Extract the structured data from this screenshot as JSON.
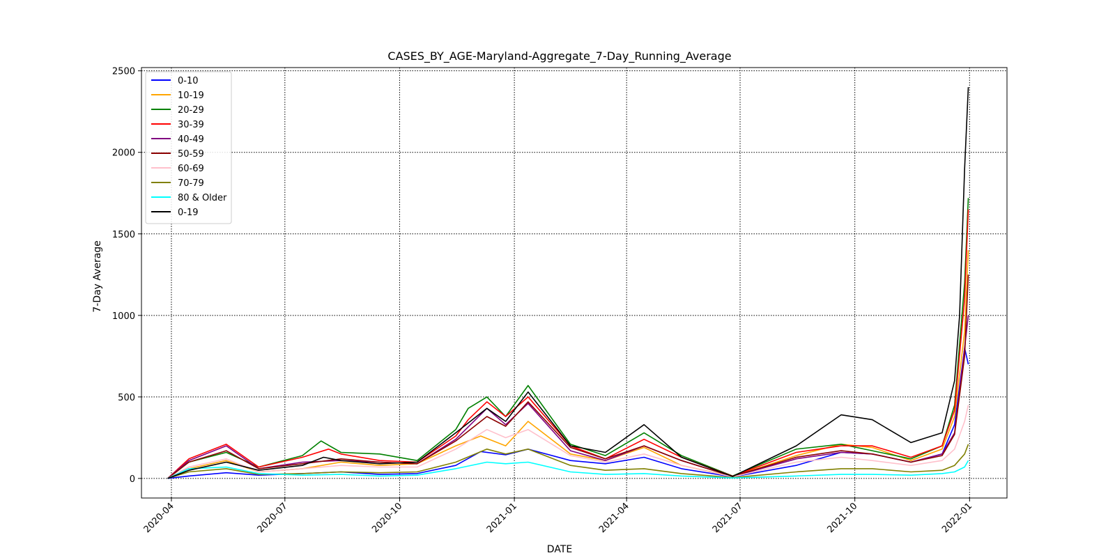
{
  "chart_data": {
    "type": "line",
    "title": "CASES_BY_AGE-Maryland-Aggregate_7-Day_Running_Average",
    "xlabel": "DATE",
    "ylabel": "7-Day Average",
    "xlim": [
      "2020-03-08",
      "2022-01-31"
    ],
    "ylim": [
      -120,
      2520
    ],
    "grid": true,
    "legend_position": "upper-left",
    "x_ticks": [
      "2020-04",
      "2020-07",
      "2020-10",
      "2021-01",
      "2021-04",
      "2021-07",
      "2021-10",
      "2022-01"
    ],
    "y_ticks": [
      0,
      500,
      1000,
      1500,
      2000,
      2500
    ],
    "series": [
      {
        "name": "0-10",
        "color": "#0000ff",
        "x": [
          "2020-03-29",
          "2020-04-15",
          "2020-05-15",
          "2020-06-10",
          "2020-07-15",
          "2020-08-15",
          "2020-09-15",
          "2020-10-15",
          "2020-11-15",
          "2020-12-05",
          "2020-12-25",
          "2021-01-12",
          "2021-02-15",
          "2021-03-15",
          "2021-04-15",
          "2021-05-15",
          "2021-06-25",
          "2021-08-15",
          "2021-09-20",
          "2021-10-15",
          "2021-11-15",
          "2021-12-10",
          "2021-12-20",
          "2021-12-28",
          "2021-12-31"
        ],
        "y": [
          0,
          15,
          35,
          20,
          30,
          40,
          25,
          30,
          80,
          165,
          145,
          180,
          110,
          90,
          130,
          60,
          10,
          80,
          160,
          150,
          100,
          150,
          330,
          800,
          700
        ]
      },
      {
        "name": "10-19",
        "color": "#ffa500",
        "x": [
          "2020-03-29",
          "2020-04-15",
          "2020-05-15",
          "2020-06-10",
          "2020-07-15",
          "2020-08-15",
          "2020-09-15",
          "2020-10-15",
          "2020-11-15",
          "2020-12-05",
          "2020-12-25",
          "2021-01-12",
          "2021-02-15",
          "2021-03-15",
          "2021-04-15",
          "2021-05-15",
          "2021-06-25",
          "2021-08-15",
          "2021-09-20",
          "2021-10-15",
          "2021-11-15",
          "2021-12-10",
          "2021-12-20",
          "2021-12-28",
          "2021-12-31"
        ],
        "y": [
          0,
          60,
          110,
          40,
          60,
          100,
          80,
          90,
          200,
          260,
          200,
          350,
          150,
          110,
          190,
          80,
          12,
          140,
          210,
          190,
          110,
          180,
          380,
          900,
          1400
        ]
      },
      {
        "name": "20-29",
        "color": "#008000",
        "x": [
          "2020-03-29",
          "2020-04-15",
          "2020-05-15",
          "2020-06-10",
          "2020-07-15",
          "2020-07-30",
          "2020-08-15",
          "2020-09-15",
          "2020-10-15",
          "2020-11-15",
          "2020-11-25",
          "2020-12-10",
          "2020-12-25",
          "2021-01-12",
          "2021-02-15",
          "2021-03-15",
          "2021-04-15",
          "2021-05-15",
          "2021-06-25",
          "2021-08-15",
          "2021-09-20",
          "2021-10-15",
          "2021-11-15",
          "2021-12-10",
          "2021-12-20",
          "2021-12-28",
          "2021-12-31"
        ],
        "y": [
          0,
          100,
          160,
          70,
          140,
          230,
          160,
          150,
          110,
          300,
          430,
          500,
          380,
          570,
          210,
          140,
          280,
          140,
          15,
          180,
          210,
          170,
          120,
          200,
          450,
          1200,
          1720
        ]
      },
      {
        "name": "30-39",
        "color": "#ff0000",
        "x": [
          "2020-03-29",
          "2020-04-15",
          "2020-05-15",
          "2020-06-10",
          "2020-07-15",
          "2020-08-05",
          "2020-08-15",
          "2020-09-15",
          "2020-10-15",
          "2020-11-15",
          "2020-11-25",
          "2020-12-10",
          "2020-12-25",
          "2021-01-12",
          "2021-02-15",
          "2021-03-15",
          "2021-04-15",
          "2021-05-15",
          "2021-06-25",
          "2021-08-15",
          "2021-09-20",
          "2021-10-15",
          "2021-11-15",
          "2021-12-10",
          "2021-12-20",
          "2021-12-28",
          "2021-12-31"
        ],
        "y": [
          0,
          120,
          210,
          70,
          130,
          180,
          150,
          110,
          100,
          260,
          360,
          470,
          380,
          500,
          200,
          120,
          240,
          130,
          14,
          160,
          200,
          200,
          130,
          200,
          420,
          1100,
          1650
        ]
      },
      {
        "name": "40-49",
        "color": "#800080",
        "x": [
          "2020-03-29",
          "2020-04-15",
          "2020-05-15",
          "2020-06-10",
          "2020-07-15",
          "2020-08-15",
          "2020-09-15",
          "2020-10-15",
          "2020-11-15",
          "2020-12-10",
          "2020-12-25",
          "2021-01-12",
          "2021-02-15",
          "2021-03-15",
          "2021-04-15",
          "2021-05-15",
          "2021-06-25",
          "2021-08-15",
          "2021-09-20",
          "2021-10-15",
          "2021-11-15",
          "2021-12-10",
          "2021-12-20",
          "2021-12-28",
          "2021-12-31"
        ],
        "y": [
          0,
          110,
          200,
          60,
          100,
          110,
          100,
          90,
          240,
          430,
          330,
          460,
          170,
          110,
          200,
          110,
          12,
          120,
          160,
          150,
          100,
          150,
          280,
          800,
          1000
        ]
      },
      {
        "name": "50-59",
        "color": "#8b0000",
        "x": [
          "2020-03-29",
          "2020-04-15",
          "2020-05-15",
          "2020-06-10",
          "2020-07-15",
          "2020-08-15",
          "2020-09-15",
          "2020-10-15",
          "2020-11-15",
          "2020-12-10",
          "2020-12-25",
          "2021-01-12",
          "2021-02-15",
          "2021-03-15",
          "2021-04-15",
          "2021-05-15",
          "2021-06-25",
          "2021-08-15",
          "2021-09-20",
          "2021-10-15",
          "2021-11-15",
          "2021-12-10",
          "2021-12-20",
          "2021-12-28",
          "2021-12-31"
        ],
        "y": [
          0,
          100,
          170,
          60,
          90,
          120,
          100,
          90,
          230,
          380,
          320,
          470,
          190,
          120,
          200,
          110,
          13,
          130,
          170,
          150,
          100,
          140,
          270,
          750,
          1250
        ]
      },
      {
        "name": "60-69",
        "color": "#ffc0cb",
        "x": [
          "2020-03-29",
          "2020-04-15",
          "2020-05-15",
          "2020-06-10",
          "2020-07-15",
          "2020-08-15",
          "2020-09-15",
          "2020-10-15",
          "2020-11-15",
          "2020-12-10",
          "2020-12-25",
          "2021-01-12",
          "2021-02-15",
          "2021-03-15",
          "2021-04-15",
          "2021-05-15",
          "2021-06-25",
          "2021-08-15",
          "2021-09-20",
          "2021-10-15",
          "2021-11-15",
          "2021-12-10",
          "2021-12-20",
          "2021-12-28",
          "2021-12-31"
        ],
        "y": [
          0,
          70,
          120,
          40,
          60,
          80,
          70,
          70,
          180,
          300,
          250,
          300,
          140,
          100,
          150,
          80,
          10,
          100,
          130,
          110,
          80,
          110,
          180,
          350,
          450
        ]
      },
      {
        "name": "70-79",
        "color": "#808000",
        "x": [
          "2020-03-29",
          "2020-04-15",
          "2020-05-15",
          "2020-06-10",
          "2020-07-15",
          "2020-08-15",
          "2020-09-15",
          "2020-10-15",
          "2020-11-15",
          "2020-12-10",
          "2020-12-25",
          "2021-01-12",
          "2021-02-15",
          "2021-03-15",
          "2021-04-15",
          "2021-05-15",
          "2021-06-25",
          "2021-08-15",
          "2021-09-20",
          "2021-10-15",
          "2021-11-15",
          "2021-12-10",
          "2021-12-20",
          "2021-12-28",
          "2021-12-31"
        ],
        "y": [
          0,
          40,
          60,
          25,
          30,
          40,
          35,
          40,
          100,
          180,
          150,
          180,
          80,
          50,
          60,
          30,
          5,
          40,
          60,
          60,
          40,
          50,
          80,
          150,
          210
        ]
      },
      {
        "name": "80 & Older",
        "color": "#00ffff",
        "x": [
          "2020-03-29",
          "2020-04-15",
          "2020-05-15",
          "2020-06-10",
          "2020-07-15",
          "2020-08-15",
          "2020-09-15",
          "2020-10-15",
          "2020-11-15",
          "2020-12-10",
          "2020-12-25",
          "2021-01-12",
          "2021-02-15",
          "2021-03-15",
          "2021-04-15",
          "2021-05-15",
          "2021-06-25",
          "2021-08-15",
          "2021-09-20",
          "2021-10-15",
          "2021-11-15",
          "2021-12-10",
          "2021-12-20",
          "2021-12-28",
          "2021-12-31"
        ],
        "y": [
          0,
          60,
          70,
          30,
          20,
          25,
          15,
          20,
          60,
          100,
          90,
          100,
          40,
          25,
          30,
          15,
          3,
          15,
          25,
          25,
          20,
          30,
          40,
          70,
          110
        ]
      },
      {
        "name": "0-19",
        "color": "#000000",
        "x": [
          "2020-03-29",
          "2020-04-15",
          "2020-05-15",
          "2020-06-10",
          "2020-07-15",
          "2020-08-01",
          "2020-08-15",
          "2020-09-15",
          "2020-10-15",
          "2020-11-15",
          "2020-12-10",
          "2020-12-25",
          "2021-01-12",
          "2021-02-15",
          "2021-03-15",
          "2021-04-15",
          "2021-05-15",
          "2021-06-25",
          "2021-08-15",
          "2021-09-20",
          "2021-10-15",
          "2021-11-15",
          "2021-12-10",
          "2021-12-20",
          "2021-12-24",
          "2021-12-28",
          "2021-12-31"
        ],
        "y": [
          0,
          50,
          100,
          50,
          80,
          130,
          110,
          90,
          100,
          280,
          430,
          350,
          530,
          200,
          160,
          330,
          130,
          12,
          200,
          390,
          360,
          220,
          280,
          600,
          1000,
          1900,
          2400
        ]
      }
    ]
  }
}
